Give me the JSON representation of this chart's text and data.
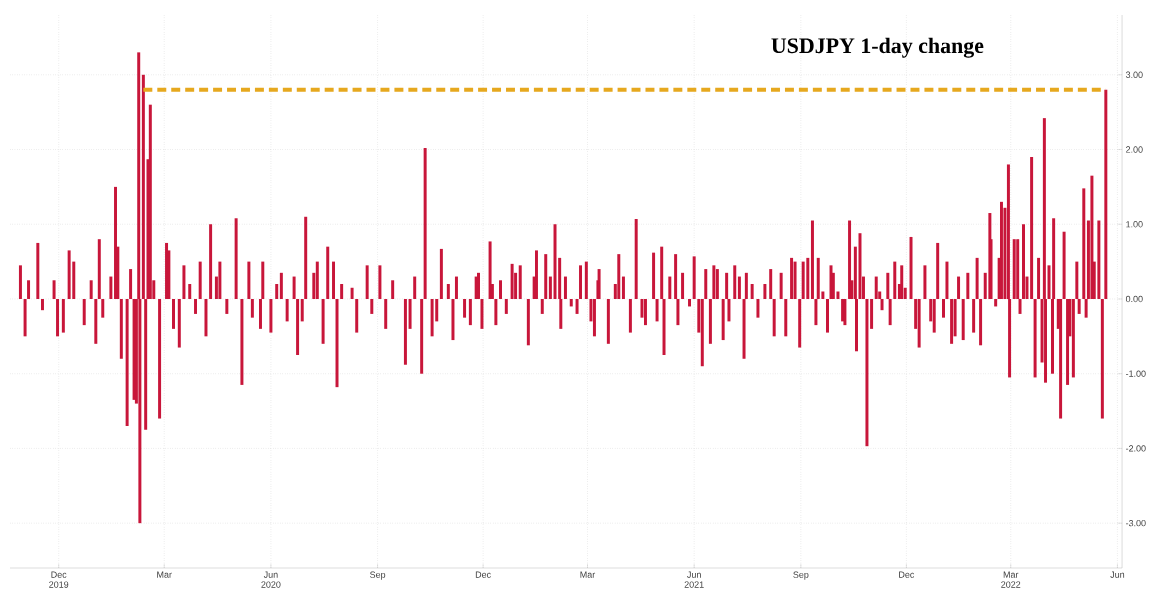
{
  "chart_data": {
    "type": "bar",
    "title": "USDJPY 1-day change",
    "xlim": [
      "2019-10-20",
      "2022-06-05"
    ],
    "xticks": [
      {
        "value": "2019-12-01",
        "label": "Dec 2019"
      },
      {
        "value": "2020-03-01",
        "label": "Mar"
      },
      {
        "value": "2020-06-01",
        "label": "Jun 2020"
      },
      {
        "value": "2020-09-01",
        "label": "Sep"
      },
      {
        "value": "2020-12-01",
        "label": "Dec"
      },
      {
        "value": "2021-03-01",
        "label": "Mar"
      },
      {
        "value": "2021-06-01",
        "label": "Jun 2021"
      },
      {
        "value": "2021-09-01",
        "label": "Sep"
      },
      {
        "value": "2021-12-01",
        "label": "Dec"
      },
      {
        "value": "2022-03-01",
        "label": "Mar 2022"
      },
      {
        "value": "2022-06-01",
        "label": "Jun"
      }
    ],
    "ylim": [
      -3.6,
      3.8
    ],
    "yticks": [
      {
        "value": 3,
        "label": "3.00"
      },
      {
        "value": 2,
        "label": "2.00"
      },
      {
        "value": 1,
        "label": "1.00"
      },
      {
        "value": 0,
        "label": "0.00"
      },
      {
        "value": -1,
        "label": "-1.00"
      },
      {
        "value": -2,
        "label": "-2.00"
      },
      {
        "value": -3,
        "label": "-3.00"
      }
    ],
    "grid": true,
    "series": [
      {
        "color": "#c8163a",
        "base": [
          0,
          0,
          0,
          0,
          0,
          0,
          0,
          0,
          0,
          0,
          0,
          0,
          0,
          0,
          0,
          0,
          0,
          0,
          0,
          0,
          0,
          0,
          0,
          0,
          0,
          0,
          0,
          0,
          0,
          0,
          0,
          0,
          0,
          0,
          0,
          0,
          0,
          0,
          0,
          0,
          0,
          0,
          0,
          0,
          0,
          0,
          0,
          0,
          0,
          0,
          0,
          0,
          0,
          0,
          0,
          0,
          0,
          0,
          0,
          0,
          0,
          0,
          0,
          0,
          0,
          0,
          0,
          0,
          0,
          0,
          0,
          0,
          0,
          0,
          0,
          0,
          0,
          0,
          0,
          0,
          0,
          0,
          0,
          0,
          0,
          0,
          0,
          0,
          0,
          0,
          0,
          0,
          0,
          0,
          0,
          0,
          0,
          0,
          0,
          0,
          0,
          0,
          0,
          0,
          0,
          0,
          0,
          0,
          0,
          0,
          0,
          0,
          0,
          0,
          0,
          0,
          0,
          0,
          0,
          0,
          0,
          0,
          0,
          0,
          0,
          0,
          0,
          0,
          0,
          0,
          0,
          0,
          0,
          0,
          0,
          0,
          0,
          0,
          0,
          0,
          0,
          0,
          0,
          0,
          0,
          0,
          0,
          0,
          0,
          0,
          0,
          0,
          0,
          0,
          0,
          0,
          0,
          0,
          0,
          0,
          0,
          0,
          0,
          0,
          0,
          0,
          0,
          0,
          0,
          0,
          0,
          0,
          0,
          0,
          0,
          0,
          0,
          0,
          0,
          0,
          0,
          0,
          0,
          0,
          0,
          0,
          0,
          0,
          0,
          0,
          0,
          0,
          0,
          0,
          0,
          0,
          0,
          0,
          0,
          0,
          0,
          0,
          0,
          0,
          0,
          0,
          0,
          0,
          0,
          0,
          0,
          0,
          0,
          0,
          0,
          0,
          0,
          0,
          0,
          0,
          0,
          0,
          0,
          0,
          0,
          0,
          0,
          0,
          0,
          0,
          0,
          0,
          0,
          0,
          0,
          0,
          0,
          0,
          0,
          0
        ],
        "x": [
          "2019-10-29",
          "2019-11-02",
          "2019-11-05",
          "2019-11-13",
          "2019-11-17",
          "2019-11-27",
          "2019-11-30",
          "2019-12-05",
          "2019-12-10",
          "2019-12-14",
          "2019-12-23",
          "2019-12-29",
          "2020-01-02",
          "2020-01-05",
          "2020-01-08",
          "2020-01-15",
          "2020-01-19",
          "2020-01-21",
          "2020-01-24",
          "2020-01-29",
          "2020-02-01",
          "2020-02-04",
          "2020-02-06",
          "2020-02-08",
          "2020-02-09",
          "2020-02-12",
          "2020-02-14",
          "2020-02-16",
          "2020-02-18",
          "2020-02-21",
          "2020-02-26",
          "2020-03-03",
          "2020-03-05",
          "2020-03-09",
          "2020-03-14",
          "2020-03-18",
          "2020-03-23",
          "2020-03-28",
          "2020-04-01",
          "2020-04-06",
          "2020-04-10",
          "2020-04-15",
          "2020-04-18",
          "2020-04-24",
          "2020-05-02",
          "2020-05-07",
          "2020-05-13",
          "2020-05-16",
          "2020-05-23",
          "2020-05-25",
          "2020-06-01",
          "2020-06-06",
          "2020-06-10",
          "2020-06-15",
          "2020-06-21",
          "2020-06-24",
          "2020-06-28",
          "2020-07-01",
          "2020-07-08",
          "2020-07-11",
          "2020-07-16",
          "2020-07-20",
          "2020-07-25",
          "2020-07-28",
          "2020-08-01",
          "2020-08-10",
          "2020-08-14",
          "2020-08-23",
          "2020-08-27",
          "2020-09-03",
          "2020-09-08",
          "2020-09-14",
          "2020-09-25",
          "2020-09-29",
          "2020-10-03",
          "2020-10-09",
          "2020-10-12",
          "2020-10-18",
          "2020-10-22",
          "2020-10-26",
          "2020-11-01",
          "2020-11-05",
          "2020-11-08",
          "2020-11-15",
          "2020-11-20",
          "2020-11-25",
          "2020-11-27",
          "2020-11-30",
          "2020-12-07",
          "2020-12-09",
          "2020-12-12",
          "2020-12-16",
          "2020-12-21",
          "2020-12-26",
          "2020-12-29",
          "2021-01-02",
          "2021-01-09",
          "2021-01-14",
          "2021-01-16",
          "2021-01-21",
          "2021-01-24",
          "2021-01-28",
          "2021-02-01",
          "2021-02-05",
          "2021-02-06",
          "2021-02-10",
          "2021-02-15",
          "2021-02-20",
          "2021-02-23",
          "2021-02-28",
          "2021-03-04",
          "2021-03-07",
          "2021-03-10",
          "2021-03-11",
          "2021-03-19",
          "2021-03-25",
          "2021-03-28",
          "2021-04-01",
          "2021-04-07",
          "2021-04-12",
          "2021-04-17",
          "2021-04-20",
          "2021-04-27",
          "2021-04-30",
          "2021-05-04",
          "2021-05-06",
          "2021-05-11",
          "2021-05-16",
          "2021-05-18",
          "2021-05-22",
          "2021-05-28",
          "2021-06-01",
          "2021-06-05",
          "2021-06-08",
          "2021-06-11",
          "2021-06-15",
          "2021-06-18",
          "2021-06-21",
          "2021-06-26",
          "2021-06-29",
          "2021-07-01",
          "2021-07-06",
          "2021-07-10",
          "2021-07-14",
          "2021-07-16",
          "2021-07-21",
          "2021-07-26",
          "2021-08-01",
          "2021-08-06",
          "2021-08-09",
          "2021-08-15",
          "2021-08-19",
          "2021-08-24",
          "2021-08-27",
          "2021-08-31",
          "2021-09-03",
          "2021-09-07",
          "2021-09-11",
          "2021-09-14",
          "2021-09-16",
          "2021-09-20",
          "2021-09-24",
          "2021-09-27",
          "2021-09-29",
          "2021-10-03",
          "2021-10-07",
          "2021-10-09",
          "2021-10-13",
          "2021-10-15",
          "2021-10-18",
          "2021-10-19",
          "2021-10-22",
          "2021-10-25",
          "2021-10-28",
          "2021-11-01",
          "2021-11-05",
          "2021-11-08",
          "2021-11-10",
          "2021-11-15",
          "2021-11-17",
          "2021-11-21",
          "2021-11-25",
          "2021-11-27",
          "2021-11-30",
          "2021-12-05",
          "2021-12-09",
          "2021-12-12",
          "2021-12-17",
          "2021-12-22",
          "2021-12-25",
          "2021-12-28",
          "2022-01-02",
          "2022-01-05",
          "2022-01-09",
          "2022-01-12",
          "2022-01-15",
          "2022-01-19",
          "2022-01-23",
          "2022-01-28",
          "2022-01-31",
          "2022-02-03",
          "2022-02-07",
          "2022-02-11",
          "2022-02-12",
          "2022-02-16",
          "2022-02-19",
          "2022-02-21",
          "2022-02-24",
          "2022-02-27",
          "2022-02-28",
          "2022-03-04",
          "2022-03-07",
          "2022-03-09",
          "2022-03-12",
          "2022-03-15",
          "2022-03-19",
          "2022-03-22",
          "2022-03-25",
          "2022-03-28",
          "2022-03-30",
          "2022-03-31",
          "2022-04-03",
          "2022-04-06",
          "2022-04-07",
          "2022-04-11",
          "2022-04-13",
          "2022-04-16",
          "2022-04-19",
          "2022-04-21",
          "2022-04-24",
          "2022-04-27",
          "2022-04-29",
          "2022-05-03",
          "2022-05-05",
          "2022-05-07",
          "2022-05-10",
          "2022-05-12",
          "2022-05-16",
          "2022-05-19",
          "2022-05-22"
        ],
        "values": [
          0.45,
          -0.5,
          0.25,
          0.75,
          -0.15,
          0.25,
          -0.5,
          -0.45,
          0.65,
          0.5,
          -0.35,
          0.25,
          -0.6,
          0.8,
          -0.25,
          0.3,
          1.5,
          0.7,
          -0.8,
          -1.7,
          0.4,
          -1.35,
          -1.4,
          3.3,
          -3.0,
          3.0,
          -1.75,
          1.87,
          2.6,
          0.25,
          -1.6,
          0.75,
          0.65,
          -0.4,
          -0.65,
          0.45,
          0.2,
          -0.2,
          0.5,
          -0.5,
          1.0,
          0.3,
          0.5,
          -0.2,
          1.08,
          -1.15,
          0.5,
          -0.25,
          -0.4,
          0.5,
          -0.45,
          0.2,
          0.35,
          -0.3,
          0.3,
          -0.75,
          -0.3,
          1.1,
          0.35,
          0.5,
          -0.6,
          0.7,
          0.5,
          -1.18,
          0.2,
          0.15,
          -0.45,
          0.45,
          -0.2,
          0.45,
          -0.4,
          0.25,
          -0.88,
          -0.4,
          0.3,
          -1.0,
          2.02,
          -0.5,
          -0.3,
          0.67,
          0.2,
          -0.55,
          0.3,
          -0.25,
          -0.35,
          0.3,
          0.35,
          -0.4,
          0.77,
          0.2,
          -0.35,
          0.25,
          -0.2,
          0.47,
          0.35,
          0.45,
          -0.62,
          0.3,
          0.65,
          -0.2,
          0.6,
          0.3,
          1.0,
          0.55,
          -0.4,
          0.3,
          -0.1,
          -0.2,
          0.45,
          0.5,
          -0.3,
          -0.5,
          0.25,
          0.4,
          -0.6,
          0.2,
          0.6,
          0.3,
          -0.45,
          1.07,
          -0.25,
          -0.35,
          0.62,
          -0.3,
          0.7,
          -0.75,
          0.3,
          0.6,
          -0.35,
          0.35,
          -0.1,
          0.57,
          -0.45,
          -0.9,
          0.4,
          -0.6,
          0.45,
          0.4,
          -0.55,
          0.35,
          -0.3,
          0.45,
          0.3,
          -0.8,
          0.35,
          0.2,
          -0.25,
          0.2,
          0.4,
          -0.5,
          0.35,
          -0.5,
          0.55,
          0.5,
          -0.65,
          0.5,
          0.55,
          1.05,
          -0.35,
          0.55,
          0.1,
          -0.45,
          0.45,
          0.35,
          0.1,
          -0.3,
          -0.35,
          1.05,
          0.25,
          0.7,
          -0.7,
          0.88,
          0.3,
          -1.97,
          -0.4,
          0.3,
          0.1,
          -0.15,
          0.35,
          -0.35,
          0.5,
          0.2,
          0.45,
          0.15,
          0.83,
          -0.4,
          -0.65,
          0.45,
          -0.3,
          -0.45,
          0.75,
          -0.25,
          0.5,
          -0.6,
          -0.5,
          0.3,
          -0.55,
          0.35,
          -0.45,
          0.55,
          -0.62,
          0.35,
          1.15,
          0.8,
          -0.1,
          0.55,
          1.3,
          1.22,
          1.8,
          -1.05,
          0.8,
          0.8,
          -0.2,
          1.0,
          0.3,
          1.9,
          -1.05,
          0.55,
          -0.85,
          2.42,
          -1.12,
          0.45,
          -1.0,
          1.08,
          -0.4,
          -1.6,
          0.9,
          -1.15,
          -0.5,
          -1.05,
          0.5,
          -0.2,
          1.48,
          -0.25,
          1.05,
          1.65,
          0.5,
          1.05,
          -1.6,
          2.8
        ]
      },
      {
        "type": "line",
        "color": "#e6a81e",
        "line_style": "dashed",
        "x": [
          "2020-02-12",
          "2022-05-22"
        ],
        "values": [
          2.8,
          2.8
        ]
      }
    ]
  }
}
